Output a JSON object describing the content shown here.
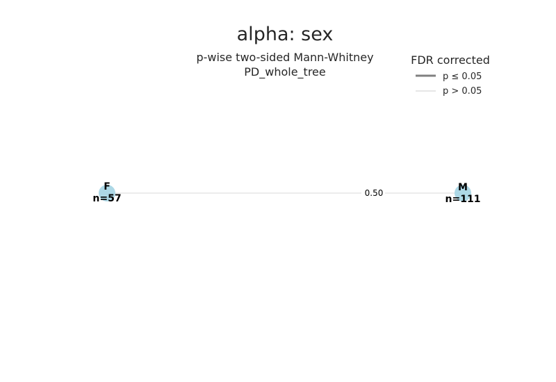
{
  "title": "alpha: sex",
  "subtitle_line1": "p-wise two-sided Mann-Whitney",
  "subtitle_line2": "PD_whole_tree",
  "legend": {
    "title": "FDR corrected",
    "items": [
      {
        "label": "p ≤ 0.05",
        "color": "#808080"
      },
      {
        "label": "p > 0.05",
        "color": "#e6e6e6"
      }
    ]
  },
  "nodes": [
    {
      "name": "F",
      "count_label": "n=57",
      "color": "#add8e6"
    },
    {
      "name": "M",
      "count_label": "n=111",
      "color": "#add8e6"
    }
  ],
  "edges": [
    {
      "from": "F",
      "to": "M",
      "label": "0.50",
      "significant": false
    }
  ]
}
